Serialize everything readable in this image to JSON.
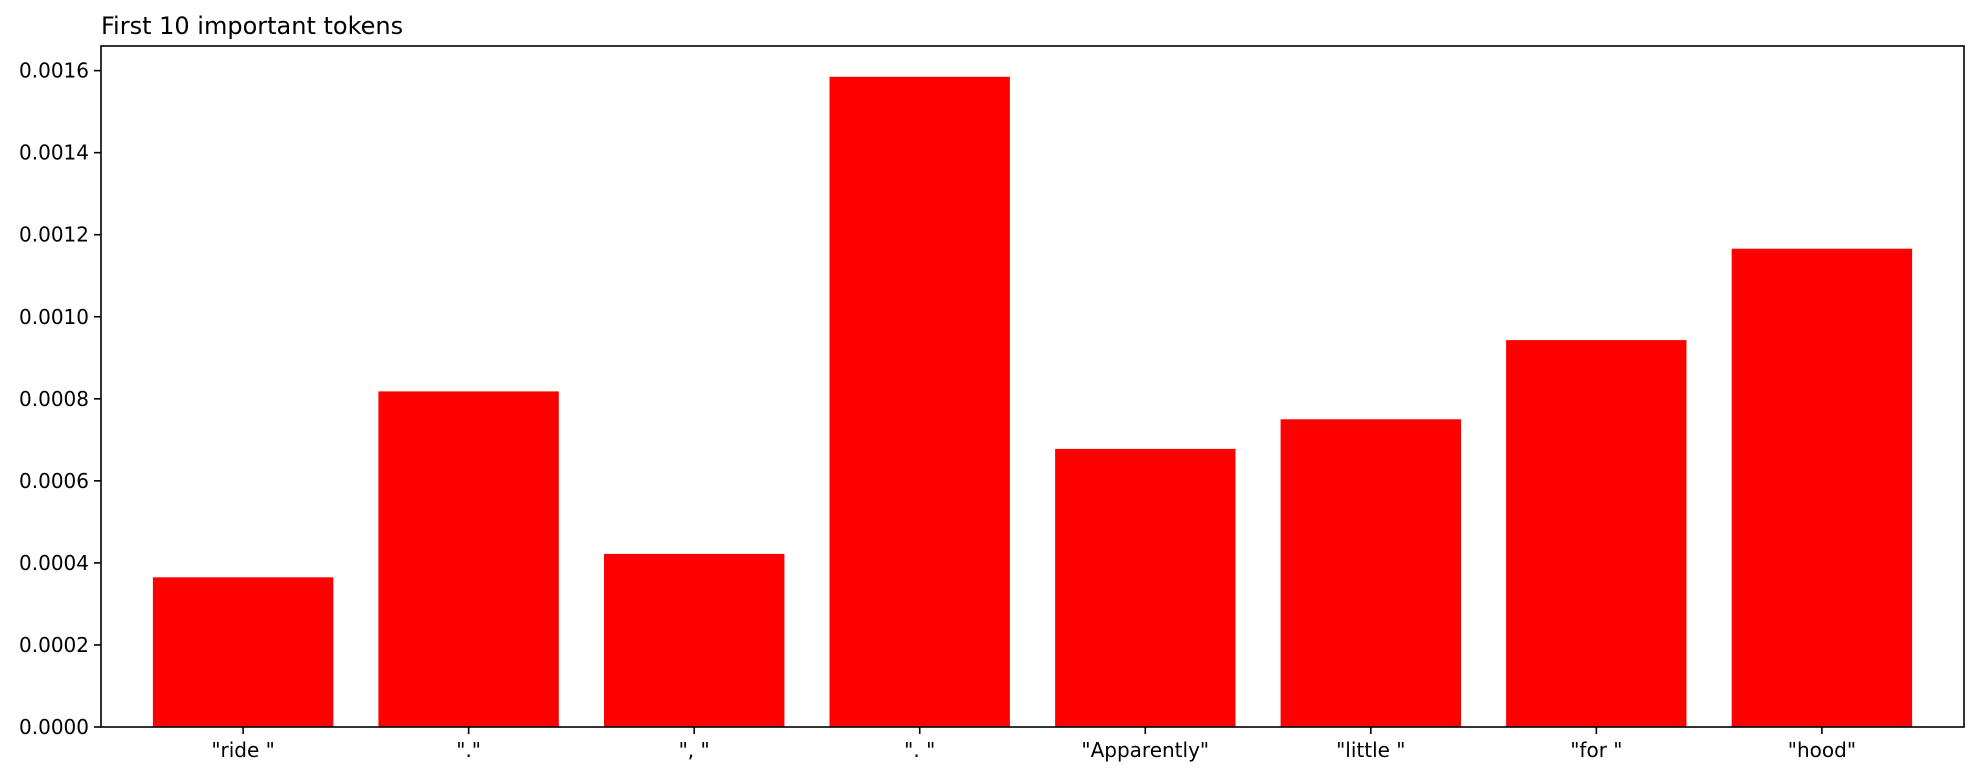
{
  "chart_data": {
    "type": "bar",
    "title": "First 10 important tokens",
    "xlabel": "",
    "ylabel": "",
    "categories": [
      "\"ride \"",
      "\".\"",
      "\", \"",
      "\". \"",
      "\"Apparently\"",
      "\"little \"",
      "\"for \"",
      "\"hood\""
    ],
    "values": [
      0.000365,
      0.000818,
      0.000422,
      0.001585,
      0.000678,
      0.00075,
      0.000943,
      0.001166
    ],
    "ylim": [
      0,
      0.00166
    ],
    "yticks": [
      0.0,
      0.0002,
      0.0004,
      0.0006,
      0.0008,
      0.001,
      0.0012,
      0.0014,
      0.0016
    ],
    "ytick_labels": [
      "0.0000",
      "0.0002",
      "0.0004",
      "0.0006",
      "0.0008",
      "0.0010",
      "0.0012",
      "0.0014",
      "0.0016"
    ],
    "bar_color": "#ff0000",
    "grid": false,
    "legend": "none"
  }
}
